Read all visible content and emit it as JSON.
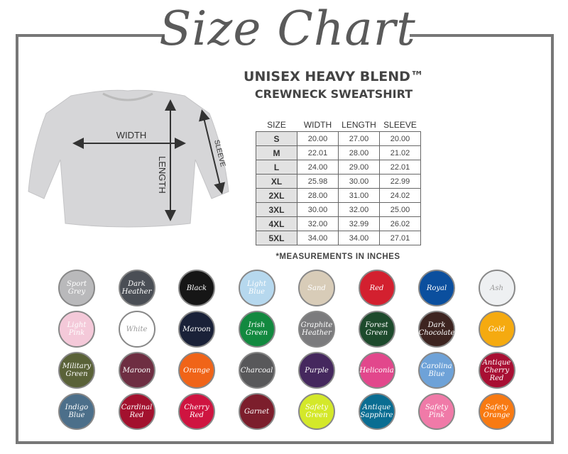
{
  "header": {
    "title": "Size Chart",
    "subtitle_line1": "UNISEX HEAVY BLEND™",
    "subtitle_line2": "CREWNECK SWEATSHIRT"
  },
  "diagram": {
    "width_label": "WIDTH",
    "length_label": "LENGTH",
    "sleeve_label": "SLEEVE"
  },
  "table": {
    "headers": [
      "SIZE",
      "WIDTH",
      "LENGTH",
      "SLEEVE"
    ],
    "rows": [
      [
        "S",
        "20.00",
        "27.00",
        "20.00"
      ],
      [
        "M",
        "22.01",
        "28.00",
        "21.02"
      ],
      [
        "L",
        "24.00",
        "29.00",
        "22.01"
      ],
      [
        "XL",
        "25.98",
        "30.00",
        "22.99"
      ],
      [
        "2XL",
        "28.00",
        "31.00",
        "24.02"
      ],
      [
        "3XL",
        "30.00",
        "32.00",
        "25.00"
      ],
      [
        "4XL",
        "32.00",
        "32.99",
        "26.02"
      ],
      [
        "5XL",
        "34.00",
        "34.00",
        "27.01"
      ]
    ],
    "note": "*MEASUREMENTS IN INCHES"
  },
  "colors": [
    {
      "name": "Sport Grey",
      "hex": "#b9b9bb"
    },
    {
      "name": "Dark Heather",
      "hex": "#4a4e55"
    },
    {
      "name": "Black",
      "hex": "#161616"
    },
    {
      "name": "Light Blue",
      "hex": "#b6d8ee"
    },
    {
      "name": "Sand",
      "hex": "#d8ccb8"
    },
    {
      "name": "Red",
      "hex": "#d3202f"
    },
    {
      "name": "Royal",
      "hex": "#0b4f9e"
    },
    {
      "name": "Ash",
      "hex": "#eef0f2"
    },
    {
      "name": "Light Pink",
      "hex": "#f4c9d9"
    },
    {
      "name": "White",
      "hex": "#ffffff"
    },
    {
      "name": "Maroon",
      "hex": "#1a2138"
    },
    {
      "name": "Irish Green",
      "hex": "#12893f"
    },
    {
      "name": "Graphite Heather",
      "hex": "#7b7b7d"
    },
    {
      "name": "Forest Green",
      "hex": "#1d4a2c"
    },
    {
      "name": "Dark Chocolate",
      "hex": "#3d2420"
    },
    {
      "name": "Gold",
      "hex": "#f5aa10"
    },
    {
      "name": "Military Green",
      "hex": "#5a6238"
    },
    {
      "name": "Maroon",
      "hex": "#6e2e42"
    },
    {
      "name": "Orange",
      "hex": "#f06418"
    },
    {
      "name": "Charcoal",
      "hex": "#58585a"
    },
    {
      "name": "Purple",
      "hex": "#45285e"
    },
    {
      "name": "Heliconia",
      "hex": "#e2478c"
    },
    {
      "name": "Carolina Blue",
      "hex": "#6ea2d8"
    },
    {
      "name": "Antique Cherry Red",
      "hex": "#a80f33"
    },
    {
      "name": "Indigo Blue",
      "hex": "#4c6f8a"
    },
    {
      "name": "Cardinal Red",
      "hex": "#a3112e"
    },
    {
      "name": "Cherry Red",
      "hex": "#cf1440"
    },
    {
      "name": "Garnet",
      "hex": "#7c1e2c"
    },
    {
      "name": "Safety Green",
      "hex": "#d4e82a"
    },
    {
      "name": "Antique Sapphire",
      "hex": "#0a6d92"
    },
    {
      "name": "Safety Pink",
      "hex": "#f07aa8"
    },
    {
      "name": "Safety Orange",
      "hex": "#f87a12"
    }
  ]
}
